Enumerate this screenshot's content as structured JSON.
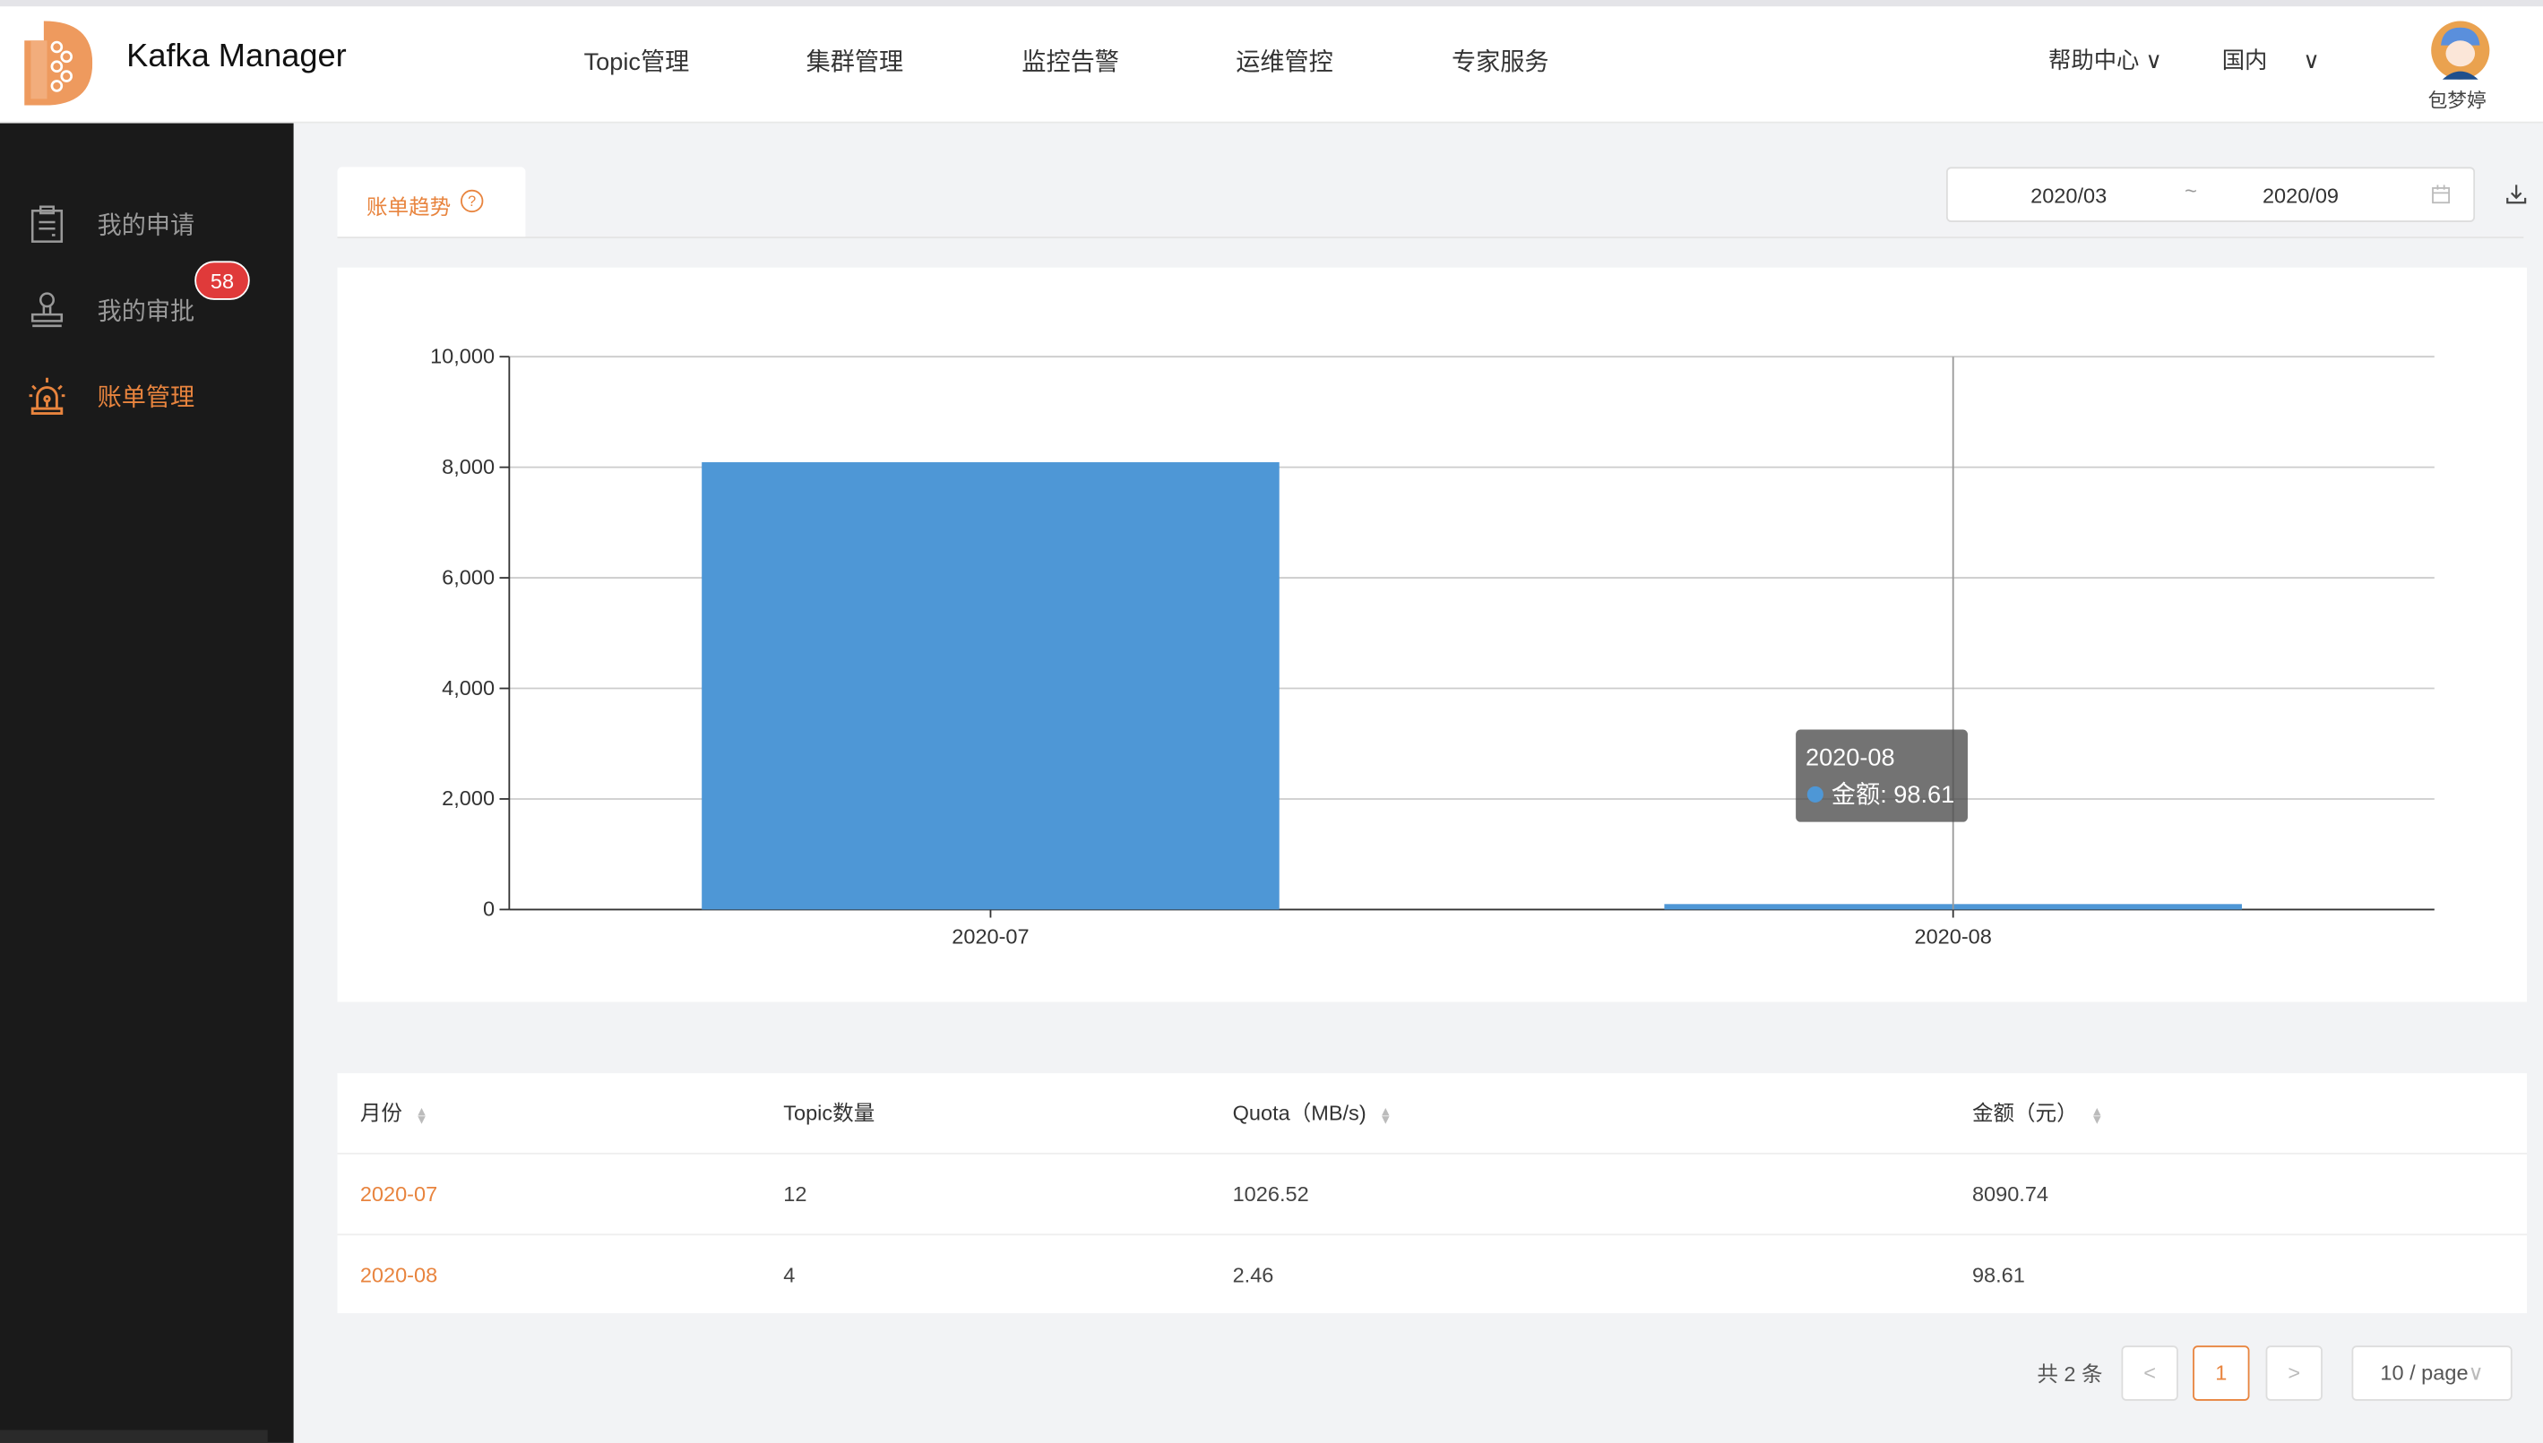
{
  "header": {
    "app_title": "Kafka Manager",
    "nav": [
      "Topic管理",
      "集群管理",
      "监控告警",
      "运维管控",
      "专家服务"
    ],
    "help": "帮助中心",
    "region": "国内",
    "user_name": "包梦婷"
  },
  "sidebar": {
    "items": [
      {
        "label": "我的申请",
        "icon": "clipboard-icon"
      },
      {
        "label": "我的审批",
        "icon": "stamp-icon",
        "badge": "58"
      },
      {
        "label": "账单管理",
        "icon": "alarm-light-icon",
        "active": true
      }
    ]
  },
  "toolbar": {
    "tab_label": "账单趋势",
    "date_start": "2020/03",
    "date_sep": "~",
    "date_end": "2020/09"
  },
  "colors": {
    "accent": "#e8843e",
    "bar": "#4e97d6",
    "sidebar": "#1a1a1a",
    "badge": "#e03a3a"
  },
  "chart_data": {
    "type": "bar",
    "categories": [
      "2020-07",
      "2020-08"
    ],
    "series": [
      {
        "name": "金额",
        "values": [
          8090.74,
          98.61
        ]
      }
    ],
    "ylim": [
      0,
      10000
    ],
    "yticks": [
      "0",
      "2,000",
      "4,000",
      "6,000",
      "8,000",
      "10,000"
    ],
    "grid": true,
    "tooltip": {
      "title": "2020-08",
      "label": "金额: 98.61"
    }
  },
  "table": {
    "columns": [
      "月份",
      "Topic数量",
      "Quota（MB/s)",
      "金额（元）"
    ],
    "rows": [
      [
        "2020-07",
        "12",
        "1026.52",
        "8090.74"
      ],
      [
        "2020-08",
        "4",
        "2.46",
        "98.61"
      ]
    ]
  },
  "pagination": {
    "total": "共 2 条",
    "prev": "<",
    "current": "1",
    "next": ">",
    "page_size": "10 / page"
  }
}
